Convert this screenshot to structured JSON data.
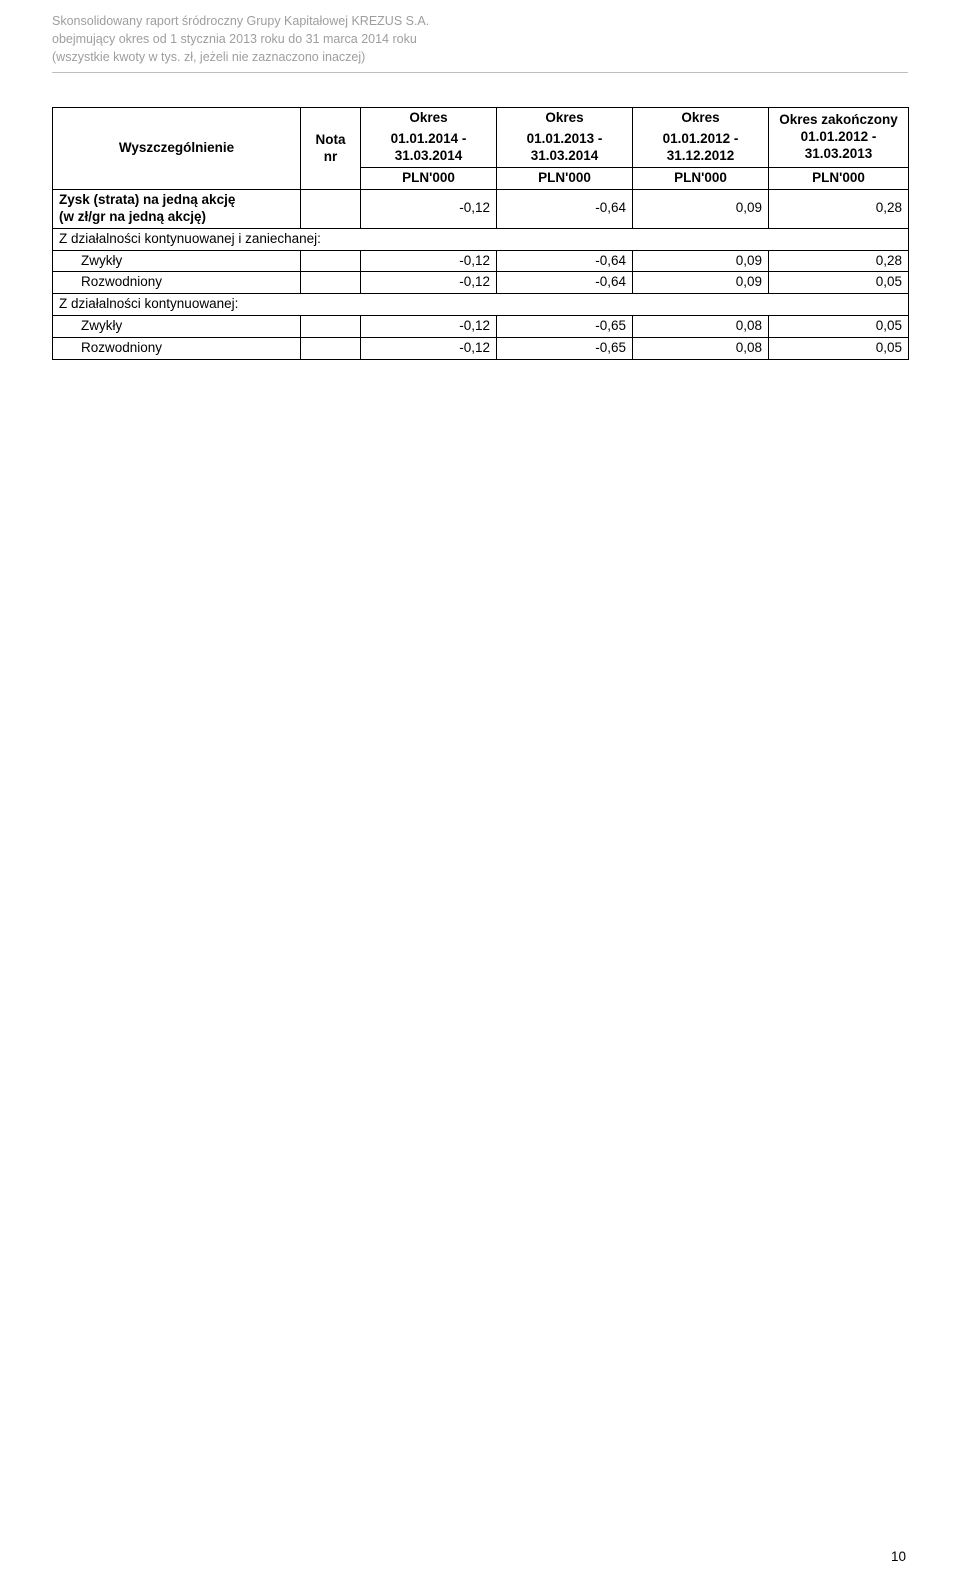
{
  "header": {
    "line1": "Skonsolidowany raport śródroczny Grupy Kapitałowej KREZUS S.A.",
    "line2": "obejmujący okres od 1 stycznia 2013 roku do 31 marca 2014 roku",
    "line3": "(wszystkie kwoty w tys. zł, jeżeli nie zaznaczono inaczej)"
  },
  "table": {
    "head": {
      "col0": "Wyszczególnienie",
      "col1a": "Nota",
      "col1b": "nr",
      "period_word": "Okres",
      "period_word_zak": "Okres zakończony",
      "range1": "01.01.2014 - 31.03.2014",
      "range2": "01.01.2013 - 31.03.2014",
      "range3": "01.01.2012 - 31.12.2012",
      "range4": "01.01.2012 - 31.03.2013",
      "unit": "PLN'000"
    },
    "rows": {
      "r1a": "Zysk (strata) na jedną akcję",
      "r1b": "(w zł/gr na jedną akcję)",
      "r1_v": [
        "-0,12",
        "-0,64",
        "0,09",
        "0,28"
      ],
      "r2": "Z działalności kontynuowanej i zaniechanej:",
      "r3": "Zwykły",
      "r3_v": [
        "-0,12",
        "-0,64",
        "0,09",
        "0,28"
      ],
      "r4": "Rozwodniony",
      "r4_v": [
        "-0,12",
        "-0,64",
        "0,09",
        "0,05"
      ],
      "r5": "Z działalności kontynuowanej:",
      "r6": "Zwykły",
      "r6_v": [
        "-0,12",
        "-0,65",
        "0,08",
        "0,05"
      ],
      "r7": "Rozwodniony",
      "r7_v": [
        "-0,12",
        "-0,65",
        "0,08",
        "0,05"
      ]
    }
  },
  "page_number": "10",
  "colors": {
    "header_text": "#9e9e9e",
    "rule": "#bfbfbf",
    "border": "#000000",
    "text": "#000000",
    "background": "#ffffff"
  }
}
